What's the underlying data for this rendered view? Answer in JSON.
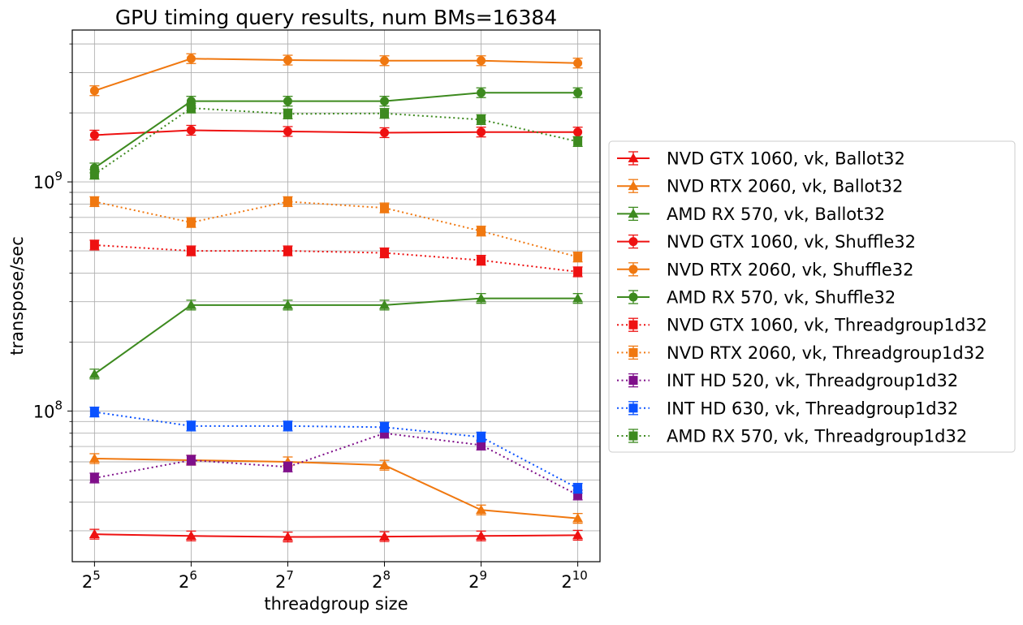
{
  "chart_data": {
    "type": "line",
    "title": "GPU timing query results, num BMs=16384",
    "xlabel": "threadgroup size",
    "ylabel": "transpose/sec",
    "x_scale": "log2",
    "y_scale": "log10",
    "x": [
      32,
      64,
      128,
      256,
      512,
      1024
    ],
    "x_tick_labels": [
      {
        "base": "2",
        "exp": "5"
      },
      {
        "base": "2",
        "exp": "6"
      },
      {
        "base": "2",
        "exp": "7"
      },
      {
        "base": "2",
        "exp": "8"
      },
      {
        "base": "2",
        "exp": "9"
      },
      {
        "base": "2",
        "exp": "10"
      }
    ],
    "y_tick_labels": [
      {
        "value": 100000000,
        "base": "10",
        "exp": "8"
      },
      {
        "value": 1000000000,
        "base": "10",
        "exp": "9"
      }
    ],
    "ylim": [
      22000000,
      4600000000
    ],
    "grid": true,
    "legend_position": "right, outside plot",
    "series": [
      {
        "name": "NVD GTX 1060, vk, Ballot32",
        "color": "#ee1111",
        "marker": "triangle",
        "linestyle": "solid",
        "values": [
          29000000,
          28500000,
          28200000,
          28300000,
          28500000,
          28700000
        ]
      },
      {
        "name": "NVD RTX 2060, vk, Ballot32",
        "color": "#f07810",
        "marker": "triangle",
        "linestyle": "solid",
        "values": [
          62000000,
          61000000,
          60000000,
          58000000,
          37000000,
          34000000
        ]
      },
      {
        "name": "AMD RX 570, vk, Ballot32",
        "color": "#3d8a1f",
        "marker": "triangle",
        "linestyle": "solid",
        "values": [
          145000000,
          290000000,
          290000000,
          290000000,
          310000000,
          310000000
        ]
      },
      {
        "name": "NVD GTX 1060, vk, Shuffle32",
        "color": "#ee1111",
        "marker": "circle",
        "linestyle": "solid",
        "values": [
          1600000000,
          1680000000,
          1660000000,
          1640000000,
          1650000000,
          1650000000
        ]
      },
      {
        "name": "NVD RTX 2060, vk, Shuffle32",
        "color": "#f07810",
        "marker": "circle",
        "linestyle": "solid",
        "values": [
          2500000000,
          3450000000,
          3400000000,
          3380000000,
          3380000000,
          3300000000
        ]
      },
      {
        "name": "AMD RX 570, vk, Shuffle32",
        "color": "#3d8a1f",
        "marker": "circle",
        "linestyle": "solid",
        "values": [
          1150000000,
          2250000000,
          2250000000,
          2250000000,
          2450000000,
          2450000000
        ]
      },
      {
        "name": "NVD GTX 1060, vk, Threadgroup1d32",
        "color": "#ee1111",
        "marker": "square",
        "linestyle": "dotted",
        "values": [
          530000000,
          500000000,
          500000000,
          490000000,
          455000000,
          405000000
        ]
      },
      {
        "name": "NVD RTX 2060, vk, Threadgroup1d32",
        "color": "#f07810",
        "marker": "square",
        "linestyle": "dotted",
        "values": [
          820000000,
          665000000,
          820000000,
          770000000,
          610000000,
          470000000
        ]
      },
      {
        "name": "INT HD 520, vk, Threadgroup1d32",
        "color": "#7f0f8a",
        "marker": "square",
        "linestyle": "dotted",
        "values": [
          51000000,
          61000000,
          57000000,
          80000000,
          71000000,
          43000000
        ]
      },
      {
        "name": "INT HD 630, vk, Threadgroup1d32",
        "color": "#0a52ff",
        "marker": "square",
        "linestyle": "dotted",
        "values": [
          99000000,
          86000000,
          86000000,
          85000000,
          77000000,
          46000000
        ]
      },
      {
        "name": "AMD RX 570, vk, Threadgroup1d32",
        "color": "#3d8a1f",
        "marker": "square",
        "linestyle": "dotted",
        "values": [
          1080000000,
          2100000000,
          1980000000,
          1990000000,
          1870000000,
          1500000000
        ]
      }
    ]
  }
}
